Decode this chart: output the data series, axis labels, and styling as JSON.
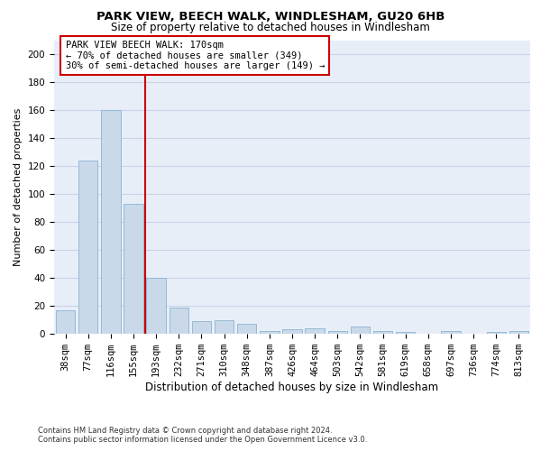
{
  "title": "PARK VIEW, BEECH WALK, WINDLESHAM, GU20 6HB",
  "subtitle": "Size of property relative to detached houses in Windlesham",
  "xlabel": "Distribution of detached houses by size in Windlesham",
  "ylabel": "Number of detached properties",
  "footer_line1": "Contains HM Land Registry data © Crown copyright and database right 2024.",
  "footer_line2": "Contains public sector information licensed under the Open Government Licence v3.0.",
  "categories": [
    "38sqm",
    "77sqm",
    "116sqm",
    "155sqm",
    "193sqm",
    "232sqm",
    "271sqm",
    "310sqm",
    "348sqm",
    "387sqm",
    "426sqm",
    "464sqm",
    "503sqm",
    "542sqm",
    "581sqm",
    "619sqm",
    "658sqm",
    "697sqm",
    "736sqm",
    "774sqm",
    "813sqm"
  ],
  "values": [
    17,
    124,
    160,
    93,
    40,
    19,
    9,
    10,
    7,
    2,
    3,
    4,
    2,
    5,
    2,
    1,
    0,
    2,
    0,
    1,
    2
  ],
  "bar_color": "#c9d9ea",
  "bar_edge_color": "#8ab4d0",
  "vline_x": 3.5,
  "vline_color": "#cc0000",
  "annotation_text": "PARK VIEW BEECH WALK: 170sqm\n← 70% of detached houses are smaller (349)\n30% of semi-detached houses are larger (149) →",
  "annotation_box_color": "#cc0000",
  "ylim": [
    0,
    210
  ],
  "yticks": [
    0,
    20,
    40,
    60,
    80,
    100,
    120,
    140,
    160,
    180,
    200
  ],
  "grid_color": "#c8d4e8",
  "bg_color": "#e8eef8",
  "title_fontsize": 9.5,
  "subtitle_fontsize": 8.5,
  "ylabel_fontsize": 8,
  "xlabel_fontsize": 8.5,
  "tick_fontsize": 7.5,
  "annotation_fontsize": 7.5,
  "footer_fontsize": 6
}
